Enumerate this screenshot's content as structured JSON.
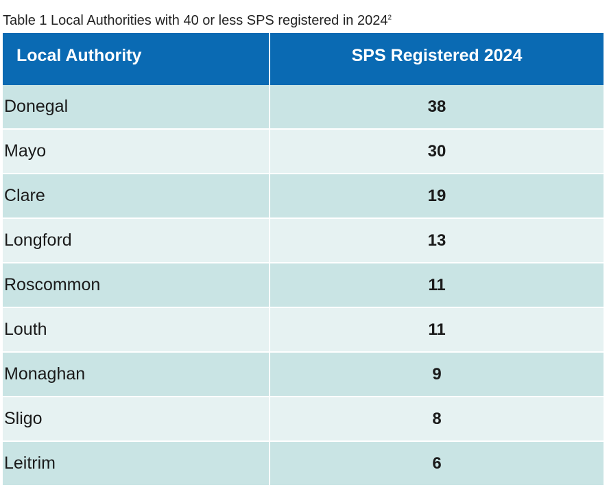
{
  "caption": {
    "text": "Table 1 Local Authorities with 40 or less SPS registered in 2024",
    "footnote": "2"
  },
  "table": {
    "headers": [
      "Local Authority",
      "SPS Registered 2024"
    ],
    "rows": [
      {
        "authority": "Donegal",
        "count": "38"
      },
      {
        "authority": "Mayo",
        "count": "30"
      },
      {
        "authority": "Clare",
        "count": "19"
      },
      {
        "authority": "Longford",
        "count": "13"
      },
      {
        "authority": "Roscommon",
        "count": "11"
      },
      {
        "authority": "Louth",
        "count": "11"
      },
      {
        "authority": "Monaghan",
        "count": "9"
      },
      {
        "authority": "Sligo",
        "count": "8"
      },
      {
        "authority": "Leitrim",
        "count": "6"
      }
    ]
  },
  "colors": {
    "header_bg": "#0a6ab3",
    "row_dark": "#c9e4e4",
    "row_light": "#e6f2f2"
  }
}
